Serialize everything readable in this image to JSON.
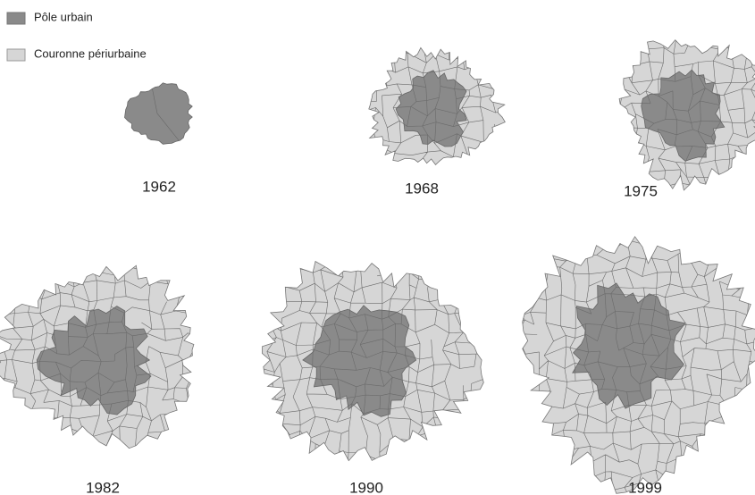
{
  "legend": [
    {
      "label": "Pôle urbain"
    },
    {
      "label": "Couronne périurbaine"
    }
  ],
  "maps": [
    {
      "year": "1962"
    },
    {
      "year": "1968"
    },
    {
      "year": "1975"
    },
    {
      "year": "1982"
    },
    {
      "year": "1990"
    },
    {
      "year": "1999"
    }
  ]
}
